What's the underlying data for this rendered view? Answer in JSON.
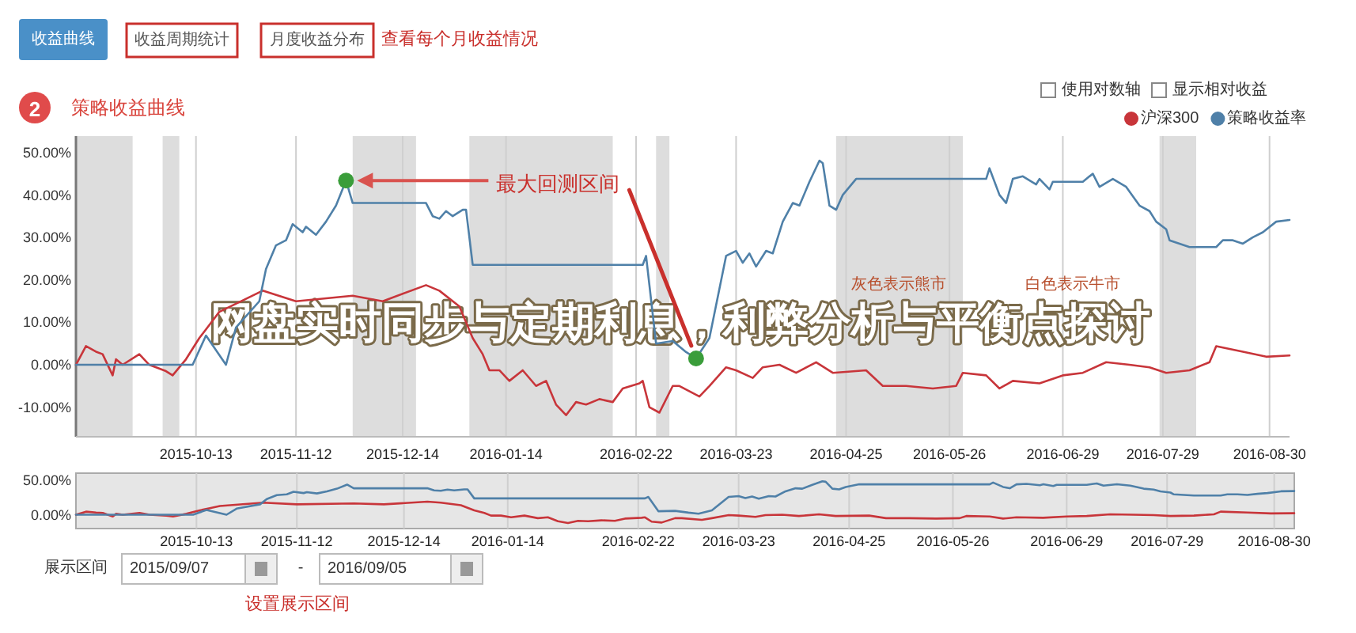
{
  "chart_data": [
    {
      "type": "line",
      "title": "网盘实时同步与定期利息，利弊分析与平衡点探讨",
      "subtitle": "策略收益曲线",
      "xlim": [
        "2015-09-07",
        "2016-09-05"
      ],
      "xticks": [
        "2015-10-13",
        "2015-11-12",
        "2015-12-14",
        "2016-01-14",
        "2016-02-22",
        "2016-03-23",
        "2016-04-25",
        "2016-05-26",
        "2016-06-29",
        "2016-07-29",
        "2016-08-30"
      ],
      "ylim": [
        -17,
        54
      ],
      "yticks": [
        {
          "value": -10,
          "label": "-10.00%"
        },
        {
          "value": 0,
          "label": "0.00%"
        },
        {
          "value": 10,
          "label": "10.00%"
        },
        {
          "value": 20,
          "label": "20.00%"
        },
        {
          "value": 30,
          "label": "30.00%"
        },
        {
          "value": 40,
          "label": "40.00%"
        },
        {
          "value": 50,
          "label": "50.00%"
        }
      ],
      "grid": "x",
      "legend": "top right",
      "bands": [
        {
          "axis": "x",
          "from": "2015-09-07",
          "to": "2015-09-24",
          "color": "#dddddd"
        },
        {
          "axis": "x",
          "from": "2015-10-03",
          "to": "2015-10-08",
          "color": "#dddddd"
        },
        {
          "axis": "x",
          "from": "2015-11-29",
          "to": "2015-12-18",
          "color": "#dddddd"
        },
        {
          "axis": "x",
          "from": "2016-01-03",
          "to": "2016-02-15",
          "color": "#dddddd"
        },
        {
          "axis": "x",
          "from": "2016-02-28",
          "to": "2016-03-03",
          "color": "#dddddd"
        },
        {
          "axis": "x",
          "from": "2016-04-22",
          "to": "2016-05-30",
          "color": "#dddddd"
        },
        {
          "axis": "x",
          "from": "2016-07-28",
          "to": "2016-08-08",
          "color": "#dddddd"
        }
      ],
      "series": [
        {
          "name": "沪深300",
          "color": "#c8353a",
          "x": [
            "2015-09-07",
            "2015-09-10",
            "2015-09-13",
            "2015-09-15",
            "2015-09-18",
            "2015-09-19",
            "2015-09-21",
            "2015-09-26",
            "2015-09-29",
            "2015-10-04",
            "2015-10-06",
            "2015-10-10",
            "2015-10-14",
            "2015-10-17",
            "2015-10-20",
            "2015-11-02",
            "2015-11-12",
            "2015-11-29",
            "2015-12-08",
            "2015-12-21",
            "2015-12-25",
            "2015-12-31",
            "2016-01-04",
            "2016-01-07",
            "2016-01-09",
            "2016-01-12",
            "2016-01-15",
            "2016-01-19",
            "2016-01-23",
            "2016-01-26",
            "2016-01-29",
            "2016-02-01",
            "2016-02-04",
            "2016-02-07",
            "2016-02-11",
            "2016-02-15",
            "2016-02-18",
            "2016-02-23",
            "2016-02-24",
            "2016-02-26",
            "2016-02-29",
            "2016-03-04",
            "2016-03-06",
            "2016-03-12",
            "2016-03-15",
            "2016-03-20",
            "2016-03-23",
            "2016-03-28",
            "2016-03-31",
            "2016-04-05",
            "2016-04-10",
            "2016-04-16",
            "2016-04-21",
            "2016-05-01",
            "2016-05-06",
            "2016-05-13",
            "2016-05-21",
            "2016-05-28",
            "2016-05-30",
            "2016-06-06",
            "2016-06-10",
            "2016-06-14",
            "2016-06-22",
            "2016-06-29",
            "2016-07-05",
            "2016-07-12",
            "2016-07-19",
            "2016-07-25",
            "2016-07-30",
            "2016-08-06",
            "2016-08-12",
            "2016-08-14",
            "2016-08-22",
            "2016-08-29",
            "2016-09-05"
          ],
          "values": [
            0,
            4.4,
            3.1,
            2.5,
            -2.5,
            1.3,
            0,
            2.5,
            0,
            -1.5,
            -2.5,
            1.3,
            6.3,
            9.4,
            12.5,
            17.5,
            15,
            16.3,
            15,
            18.8,
            17.5,
            13.8,
            6.3,
            2.5,
            -1.3,
            -1.3,
            -3.8,
            -1.3,
            -5.0,
            -3.8,
            -9.4,
            -11.9,
            -8.8,
            -9.4,
            -8.1,
            -8.8,
            -5.6,
            -4.4,
            -3.8,
            -10.0,
            -11.3,
            -5.0,
            -5.0,
            -7.5,
            -5.0,
            -0.6,
            -1.3,
            -3.1,
            -0.6,
            0,
            -1.9,
            0.6,
            -1.9,
            -1.3,
            -5.0,
            -5.0,
            -5.6,
            -5.0,
            -1.9,
            -2.5,
            -5.6,
            -3.8,
            -4.4,
            -2.5,
            -1.9,
            0.6,
            0,
            -0.6,
            -1.9,
            -1.3,
            0.6,
            4.4,
            3.1,
            1.9,
            2.2
          ]
        },
        {
          "name": "策略收益率",
          "color": "#4f80a8",
          "x": [
            "2015-09-07",
            "2015-10-12",
            "2015-10-16",
            "2015-10-22",
            "2015-10-25",
            "2015-11-01",
            "2015-11-03",
            "2015-11-06",
            "2015-11-09",
            "2015-11-11",
            "2015-11-14",
            "2015-11-15",
            "2015-11-18",
            "2015-11-21",
            "2015-11-24",
            "2015-11-27",
            "2015-11-29",
            "2015-12-21",
            "2015-12-23",
            "2015-12-25",
            "2015-12-27",
            "2015-12-29",
            "2016-01-01",
            "2016-01-02",
            "2016-01-04",
            "2016-02-24",
            "2016-02-25",
            "2016-02-26",
            "2016-02-28",
            "2016-03-04",
            "2016-03-08",
            "2016-03-11",
            "2016-03-15",
            "2016-03-20",
            "2016-03-23",
            "2016-03-25",
            "2016-03-27",
            "2016-03-29",
            "2016-04-01",
            "2016-04-03",
            "2016-04-06",
            "2016-04-09",
            "2016-04-11",
            "2016-04-14",
            "2016-04-17",
            "2016-04-18",
            "2016-04-20",
            "2016-04-22",
            "2016-04-24",
            "2016-04-28",
            "2016-06-06",
            "2016-06-07",
            "2016-06-10",
            "2016-06-12",
            "2016-06-14",
            "2016-06-17",
            "2016-06-21",
            "2016-06-22",
            "2016-06-25",
            "2016-06-26",
            "2016-07-05",
            "2016-07-07",
            "2016-07-08",
            "2016-07-10",
            "2016-07-14",
            "2016-07-18",
            "2016-07-22",
            "2016-07-25",
            "2016-07-27",
            "2016-07-30",
            "2016-07-31",
            "2016-08-06",
            "2016-08-14",
            "2016-08-16",
            "2016-08-19",
            "2016-08-22",
            "2016-08-25",
            "2016-08-28",
            "2016-09-01",
            "2016-09-05"
          ],
          "values": [
            0,
            0,
            6.9,
            0,
            8.8,
            15,
            22.6,
            28.2,
            29.4,
            33.2,
            31.3,
            32.6,
            30.7,
            33.8,
            37.6,
            43.5,
            38.2,
            38.2,
            35.1,
            34.5,
            36.3,
            35.1,
            36.6,
            36.6,
            23.6,
            23.6,
            25.7,
            18.8,
            5.0,
            5.6,
            3,
            1.5,
            6.3,
            25.7,
            26.9,
            24.1,
            26.3,
            23.2,
            26.9,
            26.3,
            33.8,
            38.2,
            37.6,
            43.2,
            48.2,
            47.6,
            37.6,
            36.6,
            40.1,
            43.9,
            43.9,
            46.4,
            40.1,
            38.2,
            43.9,
            44.5,
            42.6,
            43.9,
            41.4,
            43.2,
            43.2,
            44.5,
            45.1,
            42,
            43.9,
            42,
            37.6,
            36.3,
            33.8,
            32,
            29.4,
            27.8,
            27.8,
            29.4,
            29.4,
            28.6,
            30.1,
            31.3,
            33.8,
            34.2
          ]
        },
        {
          "type": "scatter",
          "color": "#3a9d3a",
          "x": [
            "2015-11-27",
            "2016-03-11"
          ],
          "values": [
            43.5,
            1.5
          ]
        }
      ],
      "annotations": [
        "收益曲线",
        "收益周期统计",
        "月度收益分布",
        "查看每个月收益情况",
        "2",
        "使用对数轴",
        "显示相对收益",
        {
          "text": "最大回测区间",
          "x": "2016-03-11",
          "y": 1.5
        },
        "灰色表示熊市",
        "白色表示牛市"
      ]
    },
    {
      "type": "line",
      "xlim": [
        "2015-09-07",
        "2016-09-05"
      ],
      "xticks": [
        "2015-10-13",
        "2015-11-12",
        "2015-12-14",
        "2016-01-14",
        "2016-02-22",
        "2016-03-23",
        "2016-04-25",
        "2016-05-26",
        "2016-06-29",
        "2016-07-29",
        "2016-08-30"
      ],
      "ylim": [
        -20,
        60
      ],
      "yticks": [
        {
          "value": 0,
          "label": "0.00%"
        },
        {
          "value": 50,
          "label": "50.00%"
        }
      ],
      "grid": "x",
      "series": [
        {
          "color": "#c8353a",
          "x": [
            "2015-09-07",
            "2015-09-10",
            "2015-09-13",
            "2015-09-15",
            "2015-09-18",
            "2015-09-19",
            "2015-09-21",
            "2015-09-26",
            "2015-09-29",
            "2015-10-04",
            "2015-10-06",
            "2015-10-10",
            "2015-10-14",
            "2015-10-17",
            "2015-10-20",
            "2015-11-02",
            "2015-11-12",
            "2015-11-29",
            "2015-12-08",
            "2015-12-21",
            "2015-12-25",
            "2015-12-31",
            "2016-01-04",
            "2016-01-07",
            "2016-01-09",
            "2016-01-12",
            "2016-01-15",
            "2016-01-19",
            "2016-01-23",
            "2016-01-26",
            "2016-01-29",
            "2016-02-01",
            "2016-02-04",
            "2016-02-07",
            "2016-02-11",
            "2016-02-15",
            "2016-02-18",
            "2016-02-23",
            "2016-02-24",
            "2016-02-26",
            "2016-02-29",
            "2016-03-04",
            "2016-03-06",
            "2016-03-12",
            "2016-03-15",
            "2016-03-20",
            "2016-03-23",
            "2016-03-28",
            "2016-03-31",
            "2016-04-05",
            "2016-04-10",
            "2016-04-16",
            "2016-04-21",
            "2016-05-01",
            "2016-05-06",
            "2016-05-13",
            "2016-05-21",
            "2016-05-28",
            "2016-05-30",
            "2016-06-06",
            "2016-06-10",
            "2016-06-14",
            "2016-06-22",
            "2016-06-29",
            "2016-07-05",
            "2016-07-12",
            "2016-07-19",
            "2016-07-25",
            "2016-07-30",
            "2016-08-06",
            "2016-08-12",
            "2016-08-14",
            "2016-08-22",
            "2016-08-29",
            "2016-09-05"
          ],
          "values": [
            0,
            4.4,
            3.1,
            2.5,
            -2.5,
            1.3,
            0,
            2.5,
            0,
            -1.5,
            -2.5,
            1.3,
            6.3,
            9.4,
            12.5,
            17.5,
            15,
            16.3,
            15,
            18.8,
            17.5,
            13.8,
            6.3,
            2.5,
            -1.3,
            -1.3,
            -3.8,
            -1.3,
            -5.0,
            -3.8,
            -9.4,
            -11.9,
            -8.8,
            -9.4,
            -8.1,
            -8.8,
            -5.6,
            -4.4,
            -3.8,
            -10.0,
            -11.3,
            -5.0,
            -5.0,
            -7.5,
            -5.0,
            -0.6,
            -1.3,
            -3.1,
            -0.6,
            0,
            -1.9,
            0.6,
            -1.9,
            -1.3,
            -5.0,
            -5.0,
            -5.6,
            -5.0,
            -1.9,
            -2.5,
            -5.6,
            -3.8,
            -4.4,
            -2.5,
            -1.9,
            0.6,
            0,
            -0.6,
            -1.9,
            -1.3,
            0.6,
            4.4,
            3.1,
            1.9,
            2.2
          ]
        },
        {
          "color": "#4f80a8",
          "x": [
            "2015-09-07",
            "2015-10-12",
            "2015-10-16",
            "2015-10-22",
            "2015-10-25",
            "2015-11-01",
            "2015-11-03",
            "2015-11-06",
            "2015-11-09",
            "2015-11-11",
            "2015-11-14",
            "2015-11-15",
            "2015-11-18",
            "2015-11-21",
            "2015-11-24",
            "2015-11-27",
            "2015-11-29",
            "2015-12-21",
            "2015-12-23",
            "2015-12-25",
            "2015-12-27",
            "2015-12-29",
            "2016-01-01",
            "2016-01-02",
            "2016-01-04",
            "2016-02-24",
            "2016-02-25",
            "2016-02-26",
            "2016-02-28",
            "2016-03-04",
            "2016-03-08",
            "2016-03-11",
            "2016-03-15",
            "2016-03-20",
            "2016-03-23",
            "2016-03-25",
            "2016-03-27",
            "2016-03-29",
            "2016-04-01",
            "2016-04-03",
            "2016-04-06",
            "2016-04-09",
            "2016-04-11",
            "2016-04-14",
            "2016-04-17",
            "2016-04-18",
            "2016-04-20",
            "2016-04-22",
            "2016-04-24",
            "2016-04-28",
            "2016-06-06",
            "2016-06-07",
            "2016-06-10",
            "2016-06-12",
            "2016-06-14",
            "2016-06-17",
            "2016-06-21",
            "2016-06-22",
            "2016-06-25",
            "2016-06-26",
            "2016-07-05",
            "2016-07-07",
            "2016-07-08",
            "2016-07-10",
            "2016-07-14",
            "2016-07-18",
            "2016-07-22",
            "2016-07-25",
            "2016-07-27",
            "2016-07-30",
            "2016-07-31",
            "2016-08-06",
            "2016-08-14",
            "2016-08-16",
            "2016-08-19",
            "2016-08-22",
            "2016-08-25",
            "2016-08-28",
            "2016-09-01",
            "2016-09-05"
          ],
          "values": [
            0,
            0,
            6.9,
            0,
            8.8,
            15,
            22.6,
            28.2,
            29.4,
            33.2,
            31.3,
            32.6,
            30.7,
            33.8,
            37.6,
            43.5,
            38.2,
            38.2,
            35.1,
            34.5,
            36.3,
            35.1,
            36.6,
            36.6,
            23.6,
            23.6,
            25.7,
            18.8,
            5.0,
            5.6,
            3,
            1.5,
            6.3,
            25.7,
            26.9,
            24.1,
            26.3,
            23.2,
            26.9,
            26.3,
            33.8,
            38.2,
            37.6,
            43.2,
            48.2,
            47.6,
            37.6,
            36.6,
            40.1,
            43.9,
            43.9,
            46.4,
            40.1,
            38.2,
            43.9,
            44.5,
            42.6,
            43.9,
            41.4,
            43.2,
            43.2,
            44.5,
            45.1,
            42,
            43.9,
            42,
            37.6,
            36.3,
            33.8,
            32,
            29.4,
            27.8,
            27.8,
            29.4,
            29.4,
            28.6,
            30.1,
            31.3,
            33.8,
            34.2
          ]
        }
      ],
      "annotations": [
        "展示区间",
        "2015/09/07",
        "-",
        "2016/09/05",
        "设置展示区间"
      ]
    }
  ]
}
